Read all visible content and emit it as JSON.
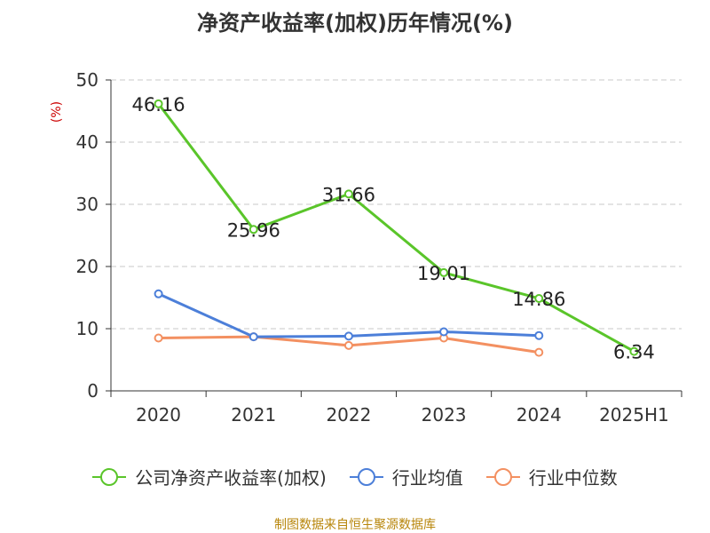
{
  "chart_data": {
    "type": "line",
    "title": "净资产收益率(加权)历年情况(%)",
    "ylabel": "(%)",
    "xlabel": "",
    "categories": [
      "2020",
      "2021",
      "2022",
      "2023",
      "2024",
      "2025H1"
    ],
    "ylim": [
      0,
      50
    ],
    "yticks": [
      0,
      10,
      20,
      30,
      40,
      50
    ],
    "grid": true,
    "legend_position": "bottom",
    "series": [
      {
        "name": "公司净资产收益率(加权)",
        "color": "#5ac52a",
        "values": [
          46.16,
          25.96,
          31.66,
          19.01,
          14.86,
          6.34
        ],
        "labels": [
          "46.16",
          "25.96",
          "31.66",
          "19.01",
          "14.86",
          "6.34"
        ]
      },
      {
        "name": "行业均值",
        "color": "#4c7fd9",
        "values": [
          15.6,
          8.7,
          8.8,
          9.5,
          8.9,
          null
        ]
      },
      {
        "name": "行业中位数",
        "color": "#f39061",
        "values": [
          8.5,
          8.7,
          7.3,
          8.5,
          6.2,
          null
        ]
      }
    ]
  },
  "footer": {
    "source": "制图数据来自恒生聚源数据库"
  }
}
